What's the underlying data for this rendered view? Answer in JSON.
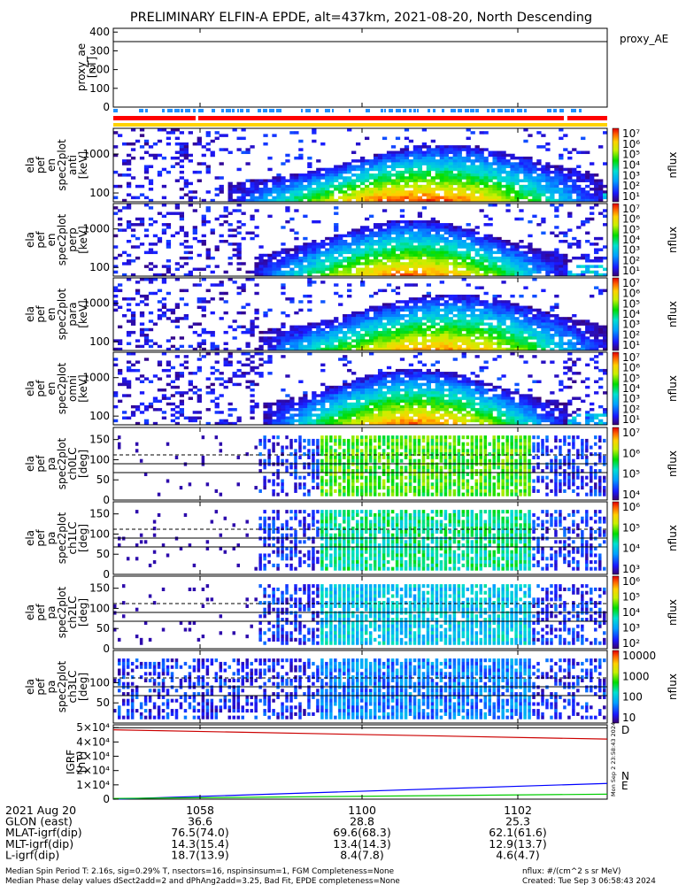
{
  "title": "PRELIMINARY ELFIN-A EPDE, alt=437km, 2021-08-20, North Descending",
  "panels": {
    "proxy_ae": {
      "ylabel": [
        "proxy_ae",
        "[nT]"
      ],
      "yticks": [
        "400",
        "300",
        "200",
        "100",
        "0"
      ],
      "legend": "proxy_AE",
      "ylim": [
        0,
        420
      ],
      "hline": 345
    },
    "spec_energy": [
      {
        "ylabel": [
          "ela",
          "pef",
          "en",
          "spec2plot",
          "anti",
          "[keV]"
        ],
        "yticks": [
          "1000",
          "100"
        ],
        "cbar_ticks": [
          "10⁷",
          "10⁶",
          "10⁵",
          "10⁴",
          "10³",
          "10²",
          "10¹"
        ]
      },
      {
        "ylabel": [
          "ela",
          "pef",
          "en",
          "spec2plot",
          "perp",
          "[keV]"
        ],
        "yticks": [
          "1000",
          "100"
        ],
        "cbar_ticks": [
          "10⁷",
          "10⁶",
          "10⁵",
          "10⁴",
          "10³",
          "10²",
          "10¹"
        ]
      },
      {
        "ylabel": [
          "ela",
          "pef",
          "en",
          "spec2plot",
          "para",
          "[keV]"
        ],
        "yticks": [
          "1000",
          "100"
        ],
        "cbar_ticks": [
          "10⁷",
          "10⁶",
          "10⁵",
          "10⁴",
          "10³",
          "10²",
          "10¹"
        ]
      },
      {
        "ylabel": [
          "ela",
          "pef",
          "en",
          "spec2plot",
          "omni",
          "[keV]"
        ],
        "yticks": [
          "1000",
          "100"
        ],
        "cbar_ticks": [
          "10⁷",
          "10⁶",
          "10⁵",
          "10⁴",
          "10³",
          "10²",
          "10¹"
        ]
      }
    ],
    "spec_pa": [
      {
        "ylabel": [
          "ela",
          "pef",
          "pa",
          "spec2plot",
          "ch0LC",
          "[deg]"
        ],
        "yticks": [
          "150",
          "100",
          "50",
          "0"
        ],
        "cbar_ticks": [
          "10⁷",
          "10⁶",
          "10⁵",
          "10⁴"
        ]
      },
      {
        "ylabel": [
          "ela",
          "pef",
          "pa",
          "spec2plot",
          "ch1LC",
          "[deg]"
        ],
        "yticks": [
          "150",
          "100",
          "50",
          "0"
        ],
        "cbar_ticks": [
          "10⁶",
          "10⁵",
          "10⁴",
          "10³"
        ]
      },
      {
        "ylabel": [
          "ela",
          "pef",
          "pa",
          "spec2plot",
          "ch2LC",
          "[deg]"
        ],
        "yticks": [
          "150",
          "100",
          "50",
          "0"
        ],
        "cbar_ticks": [
          "10⁶",
          "10⁵",
          "10⁴",
          "10³",
          "10²"
        ]
      },
      {
        "ylabel": [
          "ela",
          "pef",
          "pa",
          "spec2plot",
          "ch3LC",
          "[deg]"
        ],
        "yticks": [
          "100",
          "50"
        ],
        "cbar_ticks": [
          "10000",
          "1000",
          "100",
          "10"
        ]
      }
    ],
    "cbar_label": "nflux",
    "igrf": {
      "ylabel": [
        "IGRF",
        "[nT]"
      ],
      "yticks": [
        "5×10⁴",
        "4×10⁴",
        "3×10⁴",
        "2×10⁴",
        "1×10⁴",
        "0"
      ],
      "legend": [
        "D",
        "N",
        "E"
      ],
      "legend_colors": [
        "#cc0000",
        "#0000ff",
        "#00cc00"
      ]
    }
  },
  "chart_data": {
    "type": "heatmap",
    "x_ticks": [
      "1058",
      "1100",
      "1102"
    ],
    "igrf_series": [
      {
        "name": "D",
        "values_start": 48500,
        "values_end": 42000
      },
      {
        "name": "N",
        "values_start": 0,
        "values_end": 11000
      },
      {
        "name": "E",
        "values_start": 500,
        "values_end": 3500
      }
    ],
    "igrf_ylim": [
      0,
      52000
    ]
  },
  "ephemeris": {
    "rows": [
      {
        "label": "2021 Aug 20",
        "values": [
          "1058",
          "1100",
          "1102"
        ]
      },
      {
        "label": "GLON (east)",
        "values": [
          "36.6",
          "28.8",
          "25.3"
        ]
      },
      {
        "label": "MLAT-igrf(dip)",
        "values": [
          "76.5(74.0)",
          "69.6(68.3)",
          "62.1(61.6)"
        ]
      },
      {
        "label": "MLT-igrf(dip)",
        "values": [
          "14.3(15.4)",
          "13.4(14.3)",
          "12.9(13.7)"
        ]
      },
      {
        "label": "L-igrf(dip)",
        "values": [
          "18.7(13.9)",
          "8.4(7.8)",
          "4.6(4.7)"
        ]
      }
    ]
  },
  "footer": {
    "line1": "Median Spin Period T: 2.16s, sig=0.29% T, nsectors=16, nspinsinsum=1, FGM Completeness=None",
    "line2": "Median Phase delay values dSect2add=2 and dPhAng2add=3.25, Bad Fit, EPDE completeness=None",
    "units": "nflux: #/(cm^2 s sr MeV)",
    "created": "Created: Tue Sep  3 06:58:43 2024",
    "side_stamp": "Mon Sep  2 23:58:43 2024"
  },
  "colors": {
    "red_bar": "#ff0000",
    "blue_bar": "#1e90ff",
    "yellow_bar": "#ffd200"
  }
}
